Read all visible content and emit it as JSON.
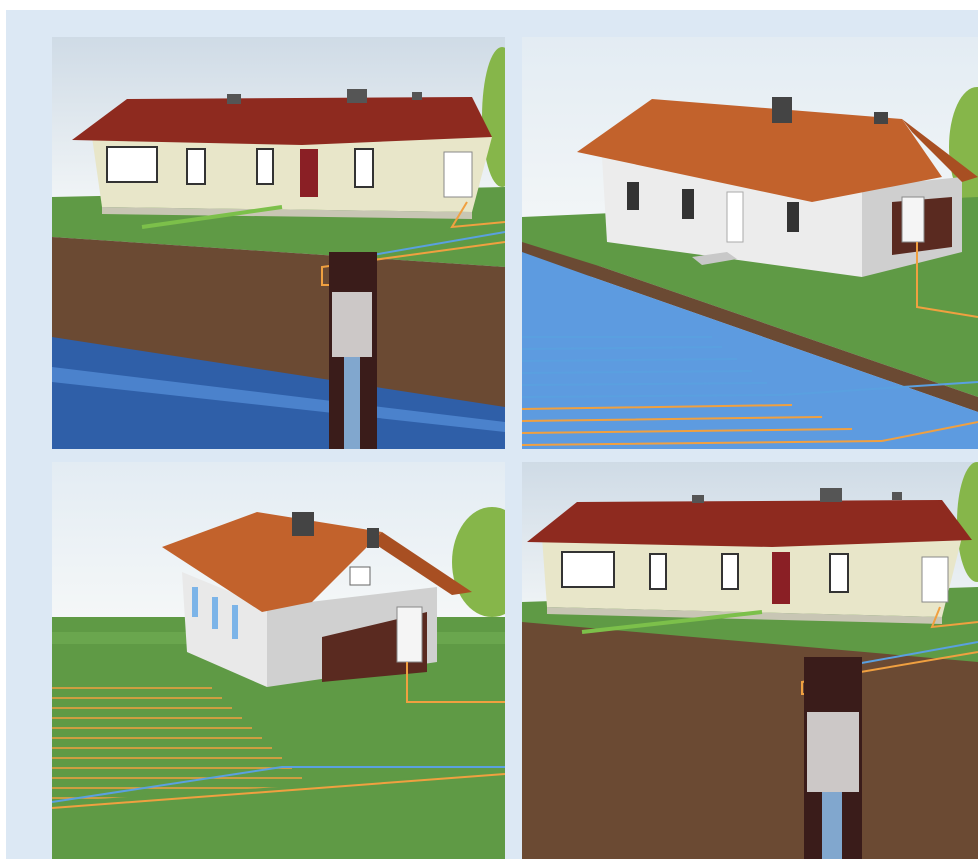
{
  "panels": [
    {
      "id": "p1",
      "scene": "vertical-borehole-groundwater"
    },
    {
      "id": "p2",
      "scene": "lake-water-collector"
    },
    {
      "id": "p3",
      "scene": "horizontal-ground-collector"
    },
    {
      "id": "p4",
      "scene": "vertical-borehole-bedrock"
    }
  ],
  "colors": {
    "background": "#dce8f4",
    "sky": "#e9f1f7",
    "grass": "#5f9a45",
    "soil": "#6b4a33",
    "water": "#3f78c0",
    "roof_red": "#8e2a1f",
    "roof_orange": "#c2622c",
    "wall": "#e8e6c9",
    "pipe_orange": "#f0a040",
    "pipe_blue": "#5aa0e0"
  }
}
